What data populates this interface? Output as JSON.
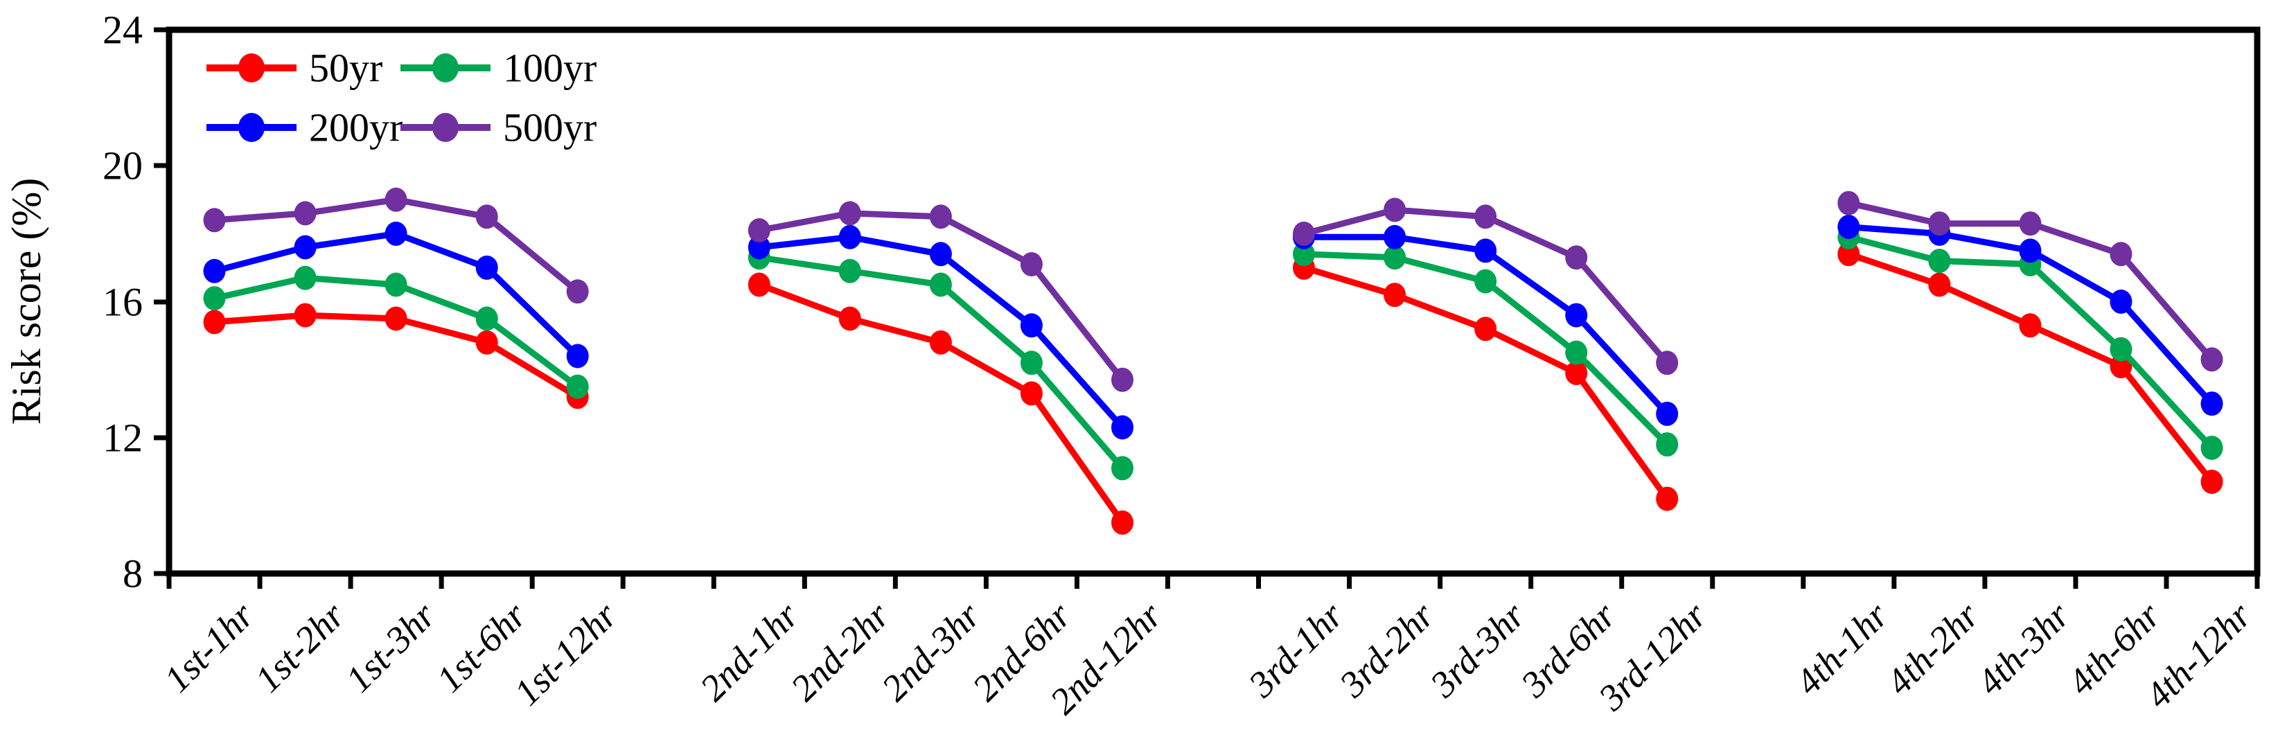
{
  "chart_data": {
    "type": "line",
    "title": "",
    "xlabel": "",
    "ylabel": "Risk score (%)",
    "ylim": [
      8,
      24
    ],
    "y_ticks": [
      24,
      20,
      16,
      12,
      8
    ],
    "grid": false,
    "legend_position": "top-left-inside",
    "group_size": 5,
    "categories": [
      "1st-1hr",
      "1st-2hr",
      "1st-3hr",
      "1st-6hr",
      "1st-12hr",
      "2nd-1hr",
      "2nd-2hr",
      "2nd-3hr",
      "2nd-6hr",
      "2nd-12hr",
      "3rd-1hr",
      "3rd-2hr",
      "3rd-3hr",
      "3rd-6hr",
      "3rd-12hr",
      "4th-1hr",
      "4th-2hr",
      "4th-3hr",
      "4th-6hr",
      "4th-12hr"
    ],
    "series": [
      {
        "name": "50yr",
        "color": "#FF0000",
        "values": [
          15.4,
          15.6,
          15.5,
          14.8,
          13.2,
          16.5,
          15.5,
          14.8,
          13.3,
          9.5,
          17.0,
          16.2,
          15.2,
          13.9,
          10.2,
          17.4,
          16.5,
          15.3,
          14.1,
          10.7
        ]
      },
      {
        "name": "100yr",
        "color": "#00A651",
        "values": [
          16.1,
          16.7,
          16.5,
          15.5,
          13.5,
          17.3,
          16.9,
          16.5,
          14.2,
          11.1,
          17.4,
          17.3,
          16.6,
          14.5,
          11.8,
          17.9,
          17.2,
          17.1,
          14.6,
          11.7
        ]
      },
      {
        "name": "200yr",
        "color": "#0000FF",
        "values": [
          16.9,
          17.6,
          18.0,
          17.0,
          14.4,
          17.6,
          17.9,
          17.4,
          15.3,
          12.3,
          17.9,
          17.9,
          17.5,
          15.6,
          12.7,
          18.2,
          18.0,
          17.5,
          16.0,
          13.0
        ]
      },
      {
        "name": "500yr",
        "color": "#7030A0",
        "values": [
          18.4,
          18.6,
          19.0,
          18.5,
          16.3,
          18.1,
          18.6,
          18.5,
          17.1,
          13.7,
          18.0,
          18.7,
          18.5,
          17.3,
          14.2,
          18.9,
          18.3,
          18.3,
          17.4,
          14.3
        ]
      }
    ]
  }
}
